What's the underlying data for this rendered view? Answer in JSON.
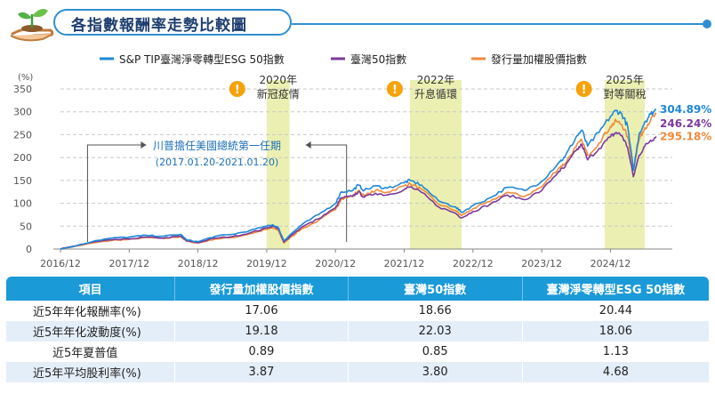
{
  "header": {
    "title": "各指數報酬率走勢比較圖"
  },
  "colors": {
    "blue": "#1e88d6",
    "purple": "#7b3a9c",
    "orange": "#f08a3c",
    "highlight": "#e8eda4",
    "accent": "#2f8fd0",
    "warn": "#f5a30a"
  },
  "chart_data": {
    "type": "line",
    "ylabel": "(%)",
    "ylim": [
      0,
      350
    ],
    "yticks": [
      0,
      50,
      100,
      150,
      200,
      250,
      300,
      350
    ],
    "xlim": [
      "2016/12",
      "2025/08"
    ],
    "xticks": [
      "2016/12",
      "2017/12",
      "2018/12",
      "2019/12",
      "2020/12",
      "2021/12",
      "2022/12",
      "2023/12",
      "2024/12"
    ],
    "grid": "horizontal-dashed",
    "legend_position": "top",
    "series": [
      {
        "name": "S&P TIP臺灣淨零轉型ESG 50指數",
        "color": "#1e88d6",
        "end_label": "304.89%",
        "points": [
          [
            "2016/12",
            0
          ],
          [
            "2017/03",
            8
          ],
          [
            "2017/06",
            18
          ],
          [
            "2017/09",
            24
          ],
          [
            "2017/12",
            26
          ],
          [
            "2018/03",
            30
          ],
          [
            "2018/06",
            28
          ],
          [
            "2018/09",
            32
          ],
          [
            "2018/10",
            20
          ],
          [
            "2018/12",
            16
          ],
          [
            "2019/03",
            28
          ],
          [
            "2019/06",
            32
          ],
          [
            "2019/09",
            40
          ],
          [
            "2019/12",
            50
          ],
          [
            "2020/01",
            53
          ],
          [
            "2020/02",
            47
          ],
          [
            "2020/03",
            18
          ],
          [
            "2020/04",
            30
          ],
          [
            "2020/06",
            52
          ],
          [
            "2020/09",
            75
          ],
          [
            "2020/12",
            100
          ],
          [
            "2021/01",
            125
          ],
          [
            "2021/03",
            128
          ],
          [
            "2021/04",
            140
          ],
          [
            "2021/05",
            128
          ],
          [
            "2021/07",
            138
          ],
          [
            "2021/09",
            133
          ],
          [
            "2021/12",
            145
          ],
          [
            "2022/01",
            150
          ],
          [
            "2022/03",
            140
          ],
          [
            "2022/06",
            105
          ],
          [
            "2022/09",
            92
          ],
          [
            "2022/10",
            80
          ],
          [
            "2022/12",
            95
          ],
          [
            "2023/03",
            112
          ],
          [
            "2023/06",
            135
          ],
          [
            "2023/09",
            128
          ],
          [
            "2023/12",
            148
          ],
          [
            "2024/03",
            190
          ],
          [
            "2024/04",
            200
          ],
          [
            "2024/06",
            245
          ],
          [
            "2024/07",
            260
          ],
          [
            "2024/08",
            225
          ],
          [
            "2024/10",
            255
          ],
          [
            "2024/12",
            290
          ],
          [
            "2025/01",
            303
          ],
          [
            "2025/02",
            295
          ],
          [
            "2025/03",
            268
          ],
          [
            "2025/04",
            172
          ],
          [
            "2025/05",
            252
          ],
          [
            "2025/06",
            278
          ],
          [
            "2025/07",
            295
          ],
          [
            "2025/08",
            305
          ]
        ]
      },
      {
        "name": "臺灣50指數",
        "color": "#7b3a9c",
        "end_label": "246.24%",
        "points": [
          [
            "2016/12",
            0
          ],
          [
            "2017/03",
            8
          ],
          [
            "2017/06",
            16
          ],
          [
            "2017/09",
            20
          ],
          [
            "2017/12",
            22
          ],
          [
            "2018/03",
            26
          ],
          [
            "2018/06",
            24
          ],
          [
            "2018/09",
            28
          ],
          [
            "2018/10",
            18
          ],
          [
            "2018/12",
            14
          ],
          [
            "2019/03",
            24
          ],
          [
            "2019/06",
            27
          ],
          [
            "2019/09",
            35
          ],
          [
            "2019/12",
            46
          ],
          [
            "2020/01",
            50
          ],
          [
            "2020/02",
            45
          ],
          [
            "2020/03",
            15
          ],
          [
            "2020/04",
            27
          ],
          [
            "2020/06",
            47
          ],
          [
            "2020/09",
            66
          ],
          [
            "2020/12",
            90
          ],
          [
            "2021/01",
            112
          ],
          [
            "2021/03",
            115
          ],
          [
            "2021/04",
            125
          ],
          [
            "2021/05",
            113
          ],
          [
            "2021/07",
            122
          ],
          [
            "2021/09",
            118
          ],
          [
            "2021/12",
            130
          ],
          [
            "2022/01",
            136
          ],
          [
            "2022/03",
            124
          ],
          [
            "2022/06",
            92
          ],
          [
            "2022/09",
            78
          ],
          [
            "2022/10",
            68
          ],
          [
            "2022/12",
            82
          ],
          [
            "2023/03",
            98
          ],
          [
            "2023/06",
            118
          ],
          [
            "2023/09",
            108
          ],
          [
            "2023/12",
            128
          ],
          [
            "2024/03",
            170
          ],
          [
            "2024/04",
            178
          ],
          [
            "2024/06",
            215
          ],
          [
            "2024/07",
            228
          ],
          [
            "2024/08",
            195
          ],
          [
            "2024/10",
            220
          ],
          [
            "2024/12",
            245
          ],
          [
            "2025/01",
            255
          ],
          [
            "2025/02",
            248
          ],
          [
            "2025/03",
            222
          ],
          [
            "2025/04",
            158
          ],
          [
            "2025/05",
            205
          ],
          [
            "2025/06",
            225
          ],
          [
            "2025/07",
            238
          ],
          [
            "2025/08",
            246
          ]
        ]
      },
      {
        "name": "發行量加權股價指數",
        "color": "#f08a3c",
        "end_label": "295.18%",
        "points": [
          [
            "2016/12",
            0
          ],
          [
            "2017/03",
            7
          ],
          [
            "2017/06",
            14
          ],
          [
            "2017/09",
            19
          ],
          [
            "2017/12",
            21
          ],
          [
            "2018/03",
            25
          ],
          [
            "2018/06",
            23
          ],
          [
            "2018/09",
            27
          ],
          [
            "2018/10",
            17
          ],
          [
            "2018/12",
            13
          ],
          [
            "2019/03",
            22
          ],
          [
            "2019/06",
            25
          ],
          [
            "2019/09",
            33
          ],
          [
            "2019/12",
            43
          ],
          [
            "2020/01",
            46
          ],
          [
            "2020/02",
            41
          ],
          [
            "2020/03",
            13
          ],
          [
            "2020/04",
            24
          ],
          [
            "2020/06",
            43
          ],
          [
            "2020/09",
            62
          ],
          [
            "2020/12",
            86
          ],
          [
            "2021/01",
            110
          ],
          [
            "2021/03",
            116
          ],
          [
            "2021/04",
            128
          ],
          [
            "2021/05",
            116
          ],
          [
            "2021/07",
            128
          ],
          [
            "2021/09",
            124
          ],
          [
            "2021/12",
            138
          ],
          [
            "2022/01",
            143
          ],
          [
            "2022/03",
            131
          ],
          [
            "2022/06",
            98
          ],
          [
            "2022/09",
            84
          ],
          [
            "2022/10",
            73
          ],
          [
            "2022/12",
            88
          ],
          [
            "2023/03",
            104
          ],
          [
            "2023/06",
            124
          ],
          [
            "2023/09",
            115
          ],
          [
            "2023/12",
            136
          ],
          [
            "2024/03",
            178
          ],
          [
            "2024/04",
            186
          ],
          [
            "2024/06",
            224
          ],
          [
            "2024/07",
            238
          ],
          [
            "2024/08",
            205
          ],
          [
            "2024/10",
            232
          ],
          [
            "2024/12",
            268
          ],
          [
            "2025/01",
            280
          ],
          [
            "2025/02",
            272
          ],
          [
            "2025/03",
            245
          ],
          [
            "2025/04",
            176
          ],
          [
            "2025/05",
            240
          ],
          [
            "2025/06",
            265
          ],
          [
            "2025/07",
            282
          ],
          [
            "2025/08",
            295
          ]
        ]
      }
    ],
    "highlights": [
      {
        "start": "2019/12",
        "end": "2020/04",
        "year": "2020年",
        "label": "新冠疫情"
      },
      {
        "start": "2022/01",
        "end": "2022/10",
        "year": "2022年",
        "label": "升息循環"
      },
      {
        "start": "2024/11",
        "end": "2025/06",
        "year": "2025年",
        "label": "對等關稅"
      }
    ],
    "annotation": {
      "title": "川普擔任美國總統第一任期",
      "period": "(2017.01.20-2021.01.20)",
      "start": "2017/01",
      "end": "2021/01"
    }
  },
  "table": {
    "headers": [
      "項目",
      "發行量加權股價指數",
      "臺灣50指數",
      "臺灣淨零轉型ESG 50指數"
    ],
    "rows": [
      [
        "近5年年化報酬率(%)",
        "17.06",
        "18.66",
        "20.44"
      ],
      [
        "近5年年化波動度(%)",
        "19.18",
        "22.03",
        "18.06"
      ],
      [
        "近5年夏普值",
        "0.89",
        "0.85",
        "1.13"
      ],
      [
        "近5年平均股利率(%)",
        "3.87",
        "3.80",
        "4.68"
      ]
    ]
  }
}
